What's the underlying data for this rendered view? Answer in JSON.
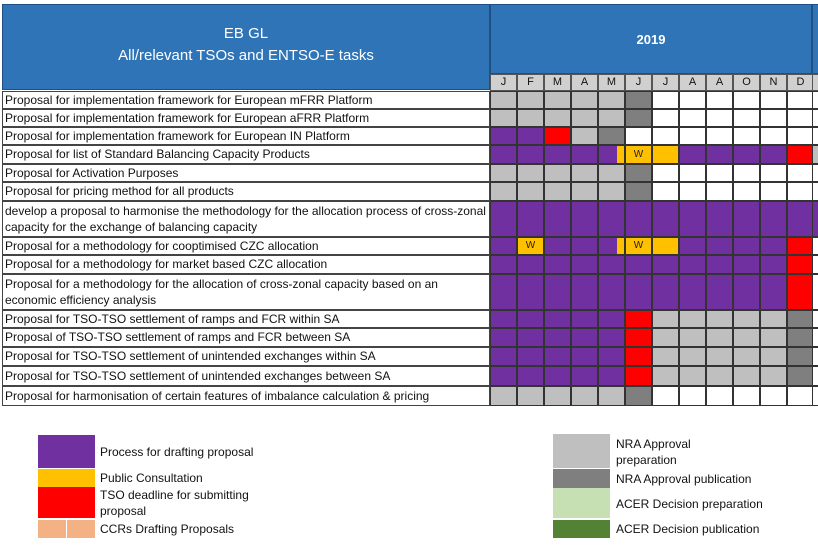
{
  "header": {
    "title_line1": "EB GL",
    "title_line2": "All/relevant TSOs and ENTSO-E tasks",
    "year": "2019",
    "months": [
      "J",
      "F",
      "M",
      "A",
      "M",
      "J",
      "J",
      "A",
      "A",
      "O",
      "N",
      "D"
    ]
  },
  "colors": {
    "P": "#7030a0",
    "C": "#ffc000",
    "R": "#ff0000",
    "L": "#bfbfbf",
    "D": "#7f7f7f",
    "W": "#ffffff",
    "AL": "#c6e0b4",
    "AD": "#548235",
    "CCR": "#f4b183",
    "header_bg": "#2f74b7"
  },
  "rows": [
    {
      "label": "Proposal for implementation framework for European mFRR Platform",
      "cells": [
        "L",
        "L",
        "L",
        "L",
        "L",
        "D",
        "W",
        "W",
        "W",
        "W",
        "W",
        "W"
      ],
      "next": "W"
    },
    {
      "label": "Proposal for implementation framework for European aFRR Platform",
      "cells": [
        "L",
        "L",
        "L",
        "L",
        "L",
        "D",
        "W",
        "W",
        "W",
        "W",
        "W",
        "W"
      ],
      "next": "W"
    },
    {
      "label": "Proposal for implementation framework for European IN Platform",
      "cells": [
        "P",
        "P",
        "R",
        "L",
        "D",
        "W",
        "W",
        "W",
        "W",
        "W",
        "W",
        "W"
      ],
      "next": "W"
    },
    {
      "label": "Proposal for list of Standard Balancing Capacity Products",
      "cells": [
        "P",
        "P",
        "P",
        "P",
        "PC",
        "C",
        "C",
        "P",
        "P",
        "P",
        "P",
        "R"
      ],
      "cell_text": {
        "5": "W"
      },
      "next": "L"
    },
    {
      "label": "Proposal for Activation Purposes",
      "cells": [
        "L",
        "L",
        "L",
        "L",
        "L",
        "D",
        "W",
        "W",
        "W",
        "W",
        "W",
        "W"
      ],
      "next": "W"
    },
    {
      "label": "Proposal for pricing method for all products",
      "cells": [
        "L",
        "L",
        "L",
        "L",
        "L",
        "D",
        "W",
        "W",
        "W",
        "W",
        "W",
        "W"
      ],
      "next": "W"
    },
    {
      "label": "develop a proposal to harmonise the methodology for the allocation process of cross-zonal capacity for the exchange of balancing capacity",
      "cells": [
        "P",
        "P",
        "P",
        "P",
        "P",
        "P",
        "P",
        "P",
        "P",
        "P",
        "P",
        "P"
      ],
      "next": "P"
    },
    {
      "label": "Proposal for a methodology for cooptimised CZC allocation",
      "cells": [
        "P",
        "C",
        "P",
        "P",
        "PC",
        "C",
        "C",
        "P",
        "P",
        "P",
        "P",
        "R"
      ],
      "cell_text": {
        "1": "W",
        "5": "W"
      },
      "next": "W"
    },
    {
      "label": "Proposal for a methodology for market based CZC allocation",
      "cells": [
        "P",
        "P",
        "P",
        "P",
        "P",
        "P",
        "P",
        "P",
        "P",
        "P",
        "P",
        "R"
      ],
      "next": "W"
    },
    {
      "label": "Proposal for a methodology for the allocation of cross-zonal capacity based on an economic efficiency analysis",
      "cells": [
        "P",
        "P",
        "P",
        "P",
        "P",
        "P",
        "P",
        "P",
        "P",
        "P",
        "P",
        "R"
      ],
      "next": "W"
    },
    {
      "label": "Proposal for TSO-TSO settlement of ramps and FCR within SA",
      "cells": [
        "P",
        "P",
        "P",
        "P",
        "P",
        "R",
        "L",
        "L",
        "L",
        "L",
        "L",
        "D"
      ],
      "next": "W"
    },
    {
      "label": "Proposal of TSO-TSO settlement of ramps and FCR between SA",
      "cells": [
        "P",
        "P",
        "P",
        "P",
        "P",
        "R",
        "L",
        "L",
        "L",
        "L",
        "L",
        "D"
      ],
      "next": "W"
    },
    {
      "label": "Proposal for TSO-TSO settlement of unintended exchanges within SA",
      "cells": [
        "P",
        "P",
        "P",
        "P",
        "P",
        "R",
        "L",
        "L",
        "L",
        "L",
        "L",
        "D"
      ],
      "next": "W"
    },
    {
      "label": "Proposal for TSO-TSO settlement of unintended exchanges between SA",
      "cells": [
        "P",
        "P",
        "P",
        "P",
        "P",
        "R",
        "L",
        "L",
        "L",
        "L",
        "L",
        "D"
      ],
      "next": "W"
    },
    {
      "label": "Proposal for harmonisation of certain features of imbalance calculation & pricing",
      "cells": [
        "L",
        "L",
        "L",
        "L",
        "L",
        "D",
        "W",
        "W",
        "W",
        "W",
        "W",
        "W"
      ],
      "next": "W"
    }
  ],
  "legend": {
    "drafting": "Process for drafting proposal",
    "consultation": "Public Consultation",
    "deadline": "TSO deadline for submitting proposal",
    "ccr": "CCRs Drafting Proposals",
    "nra_prep": "NRA Approval preparation",
    "nra_pub": "NRA Approval publication",
    "acer_prep": "ACER Decision preparation",
    "acer_pub": "ACER Decision publication"
  }
}
